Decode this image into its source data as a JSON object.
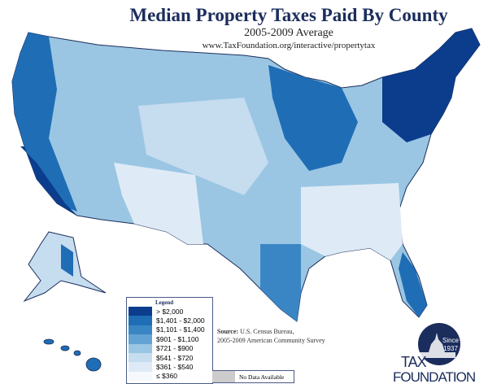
{
  "header": {
    "title": "Median Property Taxes Paid By County",
    "subtitle": "2005-2009 Average",
    "url": "www.TaxFoundation.org/interactive/propertytax"
  },
  "legend": {
    "title": "Legend",
    "items": [
      {
        "label": "> $2,000",
        "color": "#0b3d8c"
      },
      {
        "label": "$1,401 - $2,000",
        "color": "#1f6db5"
      },
      {
        "label": "$1,101 - $1,400",
        "color": "#3a86c4"
      },
      {
        "label": "$901 - $1,100",
        "color": "#62a3d4"
      },
      {
        "label": "$721 - $900",
        "color": "#9ac6e3"
      },
      {
        "label": "$541 - $720",
        "color": "#c6dcef"
      },
      {
        "label": "$361 - $540",
        "color": "#deebf6"
      },
      {
        "label": "≤ $360",
        "color": "#f5f9fd"
      }
    ],
    "no_data": {
      "label": "No Data Available",
      "color": "#cccccc"
    }
  },
  "source": {
    "label": "Source:",
    "line1": " U.S. Census Bureau,",
    "line2": "2005-2009 American Community Survey"
  },
  "logo": {
    "line1": "TAX",
    "line2": "FOUNDATION",
    "badge1": "Since",
    "badge2": "1937"
  }
}
